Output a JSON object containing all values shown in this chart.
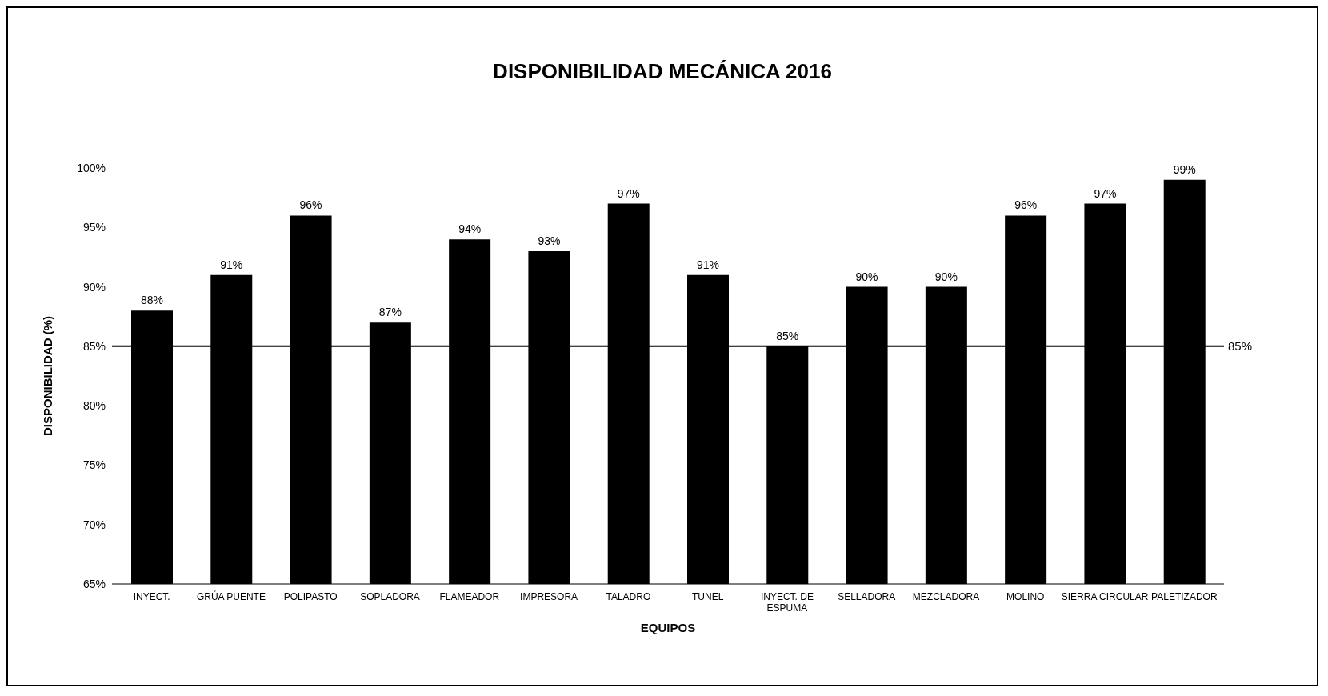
{
  "chart_data": {
    "type": "bar",
    "title": "DISPONIBILIDAD MECÁNICA 2016",
    "xlabel": "EQUIPOS",
    "ylabel": "DISPONIBILIDAD (%)",
    "categories": [
      "INYECT.",
      "GRÚA PUENTE",
      "POLIPASTO",
      "SOPLADORA",
      "FLAMEADOR",
      "IMPRESORA",
      "TALADRO",
      "TUNEL",
      "INYECT. DE ESPUMA",
      "SELLADORA",
      "MEZCLADORA",
      "MOLINO",
      "SIERRA CIRCULAR",
      "PALETIZADOR"
    ],
    "values": [
      88,
      91,
      96,
      87,
      94,
      93,
      97,
      91,
      85,
      90,
      90,
      96,
      97,
      99
    ],
    "value_labels": [
      "88%",
      "91%",
      "96%",
      "87%",
      "94%",
      "93%",
      "97%",
      "91%",
      "85%",
      "90%",
      "90%",
      "96%",
      "97%",
      "99%"
    ],
    "color": "#000000",
    "ylim": [
      65,
      100
    ],
    "yticks": [
      {
        "value": 65,
        "label": "65%"
      },
      {
        "value": 70,
        "label": "70%"
      },
      {
        "value": 75,
        "label": "75%"
      },
      {
        "value": 80,
        "label": "80%"
      },
      {
        "value": 85,
        "label": "85%"
      },
      {
        "value": 90,
        "label": "90%"
      },
      {
        "value": 95,
        "label": "95%"
      },
      {
        "value": 100,
        "label": "100%"
      }
    ],
    "ref_lines": [
      {
        "axis": "y",
        "value": 85,
        "label": "85%",
        "color": "#000000"
      }
    ],
    "grid": false
  }
}
